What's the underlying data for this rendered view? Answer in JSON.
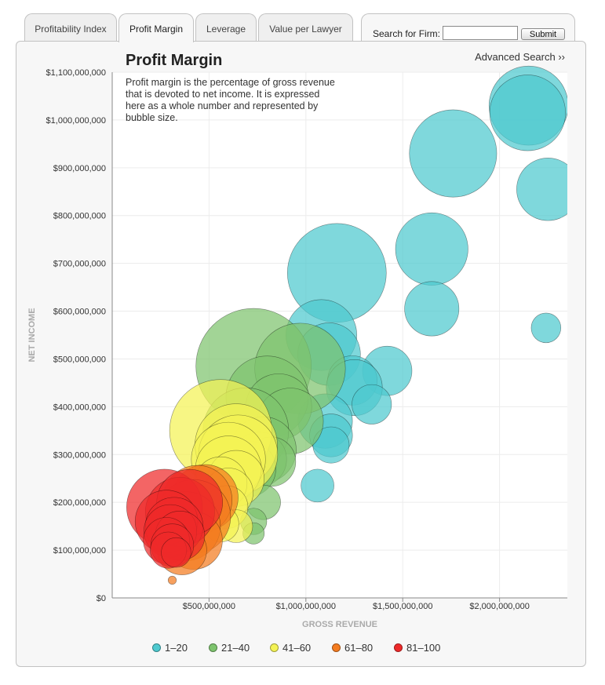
{
  "tabs": [
    {
      "label": "Profitability Index",
      "active": false
    },
    {
      "label": "Profit Margin",
      "active": true
    },
    {
      "label": "Leverage",
      "active": false
    },
    {
      "label": "Value per Lawyer",
      "active": false
    }
  ],
  "search": {
    "label": "Search for Firm:",
    "value": "",
    "submit_label": "Submit"
  },
  "advanced_search_label": "Advanced Search ››",
  "colors": {
    "1-20": "#4ec9cf",
    "21-40": "#7ec46e",
    "41-60": "#f4f355",
    "61-80": "#f47c20",
    "81-100": "#ee2a2a"
  },
  "chart_data": {
    "type": "scatter",
    "title": "Profit Margin",
    "subtitle": "Profit margin is the percentage of gross revenue that is devoted to net income. It is expressed here as a whole number and represented by bubble size.",
    "xlabel": "GROSS REVENUE",
    "ylabel": "NET INCOME",
    "xlim": [
      0,
      2350000000
    ],
    "ylim": [
      0,
      1100000000
    ],
    "x_ticks": [
      500000000,
      1000000000,
      1500000000,
      2000000000
    ],
    "x_tick_labels": [
      "$500,000,000",
      "$1,000,000,000",
      "$1,500,000,000",
      "$2,000,000,000"
    ],
    "y_ticks": [
      0,
      100000000,
      200000000,
      300000000,
      400000000,
      500000000,
      600000000,
      700000000,
      800000000,
      900000000,
      1000000000,
      1100000000
    ],
    "y_tick_labels": [
      "$0",
      "$100,000,000",
      "$200,000,000",
      "$300,000,000",
      "$400,000,000",
      "$500,000,000",
      "$600,000,000",
      "$700,000,000",
      "$800,000,000",
      "$900,000,000",
      "$1,000,000,000",
      "$1,100,000,000"
    ],
    "grid": true,
    "legend_position": "bottom",
    "size_encoding": "profit margin",
    "legend": [
      {
        "label": "1–20",
        "group": "1-20"
      },
      {
        "label": "21–40",
        "group": "21-40"
      },
      {
        "label": "41–60",
        "group": "41-60"
      },
      {
        "label": "61–80",
        "group": "61-80"
      },
      {
        "label": "81–100",
        "group": "81-100"
      }
    ],
    "points": [
      {
        "x": 2150000000,
        "y": 1030000000,
        "margin": 48,
        "group": "1-20"
      },
      {
        "x": 2145000000,
        "y": 1015000000,
        "margin": 46,
        "group": "1-20"
      },
      {
        "x": 1760000000,
        "y": 930000000,
        "margin": 53,
        "group": "1-20"
      },
      {
        "x": 2250000000,
        "y": 855000000,
        "margin": 38,
        "group": "1-20"
      },
      {
        "x": 1650000000,
        "y": 730000000,
        "margin": 44,
        "group": "1-20"
      },
      {
        "x": 1160000000,
        "y": 680000000,
        "margin": 60,
        "group": "1-20"
      },
      {
        "x": 1650000000,
        "y": 605000000,
        "margin": 33,
        "group": "1-20"
      },
      {
        "x": 2240000000,
        "y": 565000000,
        "margin": 18,
        "group": "1-20"
      },
      {
        "x": 1080000000,
        "y": 550000000,
        "margin": 43,
        "group": "1-20"
      },
      {
        "x": 1120000000,
        "y": 510000000,
        "margin": 38,
        "group": "1-20"
      },
      {
        "x": 1420000000,
        "y": 475000000,
        "margin": 30,
        "group": "1-20"
      },
      {
        "x": 1240000000,
        "y": 455000000,
        "margin": 30,
        "group": "1-20"
      },
      {
        "x": 1250000000,
        "y": 440000000,
        "margin": 34,
        "group": "1-20"
      },
      {
        "x": 1340000000,
        "y": 405000000,
        "margin": 24,
        "group": "1-20"
      },
      {
        "x": 1100000000,
        "y": 370000000,
        "margin": 33,
        "group": "1-20"
      },
      {
        "x": 1130000000,
        "y": 340000000,
        "margin": 26,
        "group": "1-20"
      },
      {
        "x": 1130000000,
        "y": 320000000,
        "margin": 22,
        "group": "1-20"
      },
      {
        "x": 1060000000,
        "y": 235000000,
        "margin": 20,
        "group": "1-20"
      },
      {
        "x": 730000000,
        "y": 485000000,
        "margin": 70,
        "group": "21-40"
      },
      {
        "x": 970000000,
        "y": 480000000,
        "margin": 55,
        "group": "21-40"
      },
      {
        "x": 800000000,
        "y": 420000000,
        "margin": 50,
        "group": "21-40"
      },
      {
        "x": 860000000,
        "y": 400000000,
        "margin": 40,
        "group": "21-40"
      },
      {
        "x": 920000000,
        "y": 370000000,
        "margin": 40,
        "group": "21-40"
      },
      {
        "x": 690000000,
        "y": 350000000,
        "margin": 52,
        "group": "21-40"
      },
      {
        "x": 780000000,
        "y": 310000000,
        "margin": 40,
        "group": "21-40"
      },
      {
        "x": 760000000,
        "y": 290000000,
        "margin": 33,
        "group": "21-40"
      },
      {
        "x": 820000000,
        "y": 285000000,
        "margin": 30,
        "group": "21-40"
      },
      {
        "x": 700000000,
        "y": 270000000,
        "margin": 34,
        "group": "21-40"
      },
      {
        "x": 780000000,
        "y": 200000000,
        "margin": 21,
        "group": "21-40"
      },
      {
        "x": 730000000,
        "y": 160000000,
        "margin": 16,
        "group": "21-40"
      },
      {
        "x": 730000000,
        "y": 135000000,
        "margin": 13,
        "group": "21-40"
      },
      {
        "x": 560000000,
        "y": 350000000,
        "margin": 62,
        "group": "41-60"
      },
      {
        "x": 640000000,
        "y": 320000000,
        "margin": 50,
        "group": "41-60"
      },
      {
        "x": 650000000,
        "y": 300000000,
        "margin": 48,
        "group": "41-60"
      },
      {
        "x": 600000000,
        "y": 290000000,
        "margin": 45,
        "group": "41-60"
      },
      {
        "x": 600000000,
        "y": 270000000,
        "margin": 40,
        "group": "41-60"
      },
      {
        "x": 640000000,
        "y": 250000000,
        "margin": 34,
        "group": "41-60"
      },
      {
        "x": 560000000,
        "y": 240000000,
        "margin": 32,
        "group": "41-60"
      },
      {
        "x": 600000000,
        "y": 220000000,
        "margin": 30,
        "group": "41-60"
      },
      {
        "x": 590000000,
        "y": 190000000,
        "margin": 26,
        "group": "41-60"
      },
      {
        "x": 640000000,
        "y": 150000000,
        "margin": 20,
        "group": "41-60"
      },
      {
        "x": 560000000,
        "y": 155000000,
        "margin": 22,
        "group": "41-60"
      },
      {
        "x": 480000000,
        "y": 210000000,
        "margin": 40,
        "group": "61-80"
      },
      {
        "x": 440000000,
        "y": 205000000,
        "margin": 42,
        "group": "61-80"
      },
      {
        "x": 420000000,
        "y": 170000000,
        "margin": 45,
        "group": "61-80"
      },
      {
        "x": 380000000,
        "y": 150000000,
        "margin": 42,
        "group": "61-80"
      },
      {
        "x": 420000000,
        "y": 120000000,
        "margin": 35,
        "group": "61-80"
      },
      {
        "x": 360000000,
        "y": 100000000,
        "margin": 30,
        "group": "61-80"
      },
      {
        "x": 310000000,
        "y": 37000000,
        "margin": 5,
        "group": "61-80"
      },
      {
        "x": 270000000,
        "y": 190000000,
        "margin": 46,
        "group": "81-100"
      },
      {
        "x": 350000000,
        "y": 180000000,
        "margin": 42,
        "group": "81-100"
      },
      {
        "x": 400000000,
        "y": 200000000,
        "margin": 40,
        "group": "81-100"
      },
      {
        "x": 280000000,
        "y": 160000000,
        "margin": 38,
        "group": "81-100"
      },
      {
        "x": 320000000,
        "y": 150000000,
        "margin": 35,
        "group": "81-100"
      },
      {
        "x": 300000000,
        "y": 140000000,
        "margin": 32,
        "group": "81-100"
      },
      {
        "x": 350000000,
        "y": 130000000,
        "margin": 30,
        "group": "81-100"
      },
      {
        "x": 280000000,
        "y": 120000000,
        "margin": 28,
        "group": "81-100"
      },
      {
        "x": 310000000,
        "y": 110000000,
        "margin": 26,
        "group": "81-100"
      },
      {
        "x": 290000000,
        "y": 100000000,
        "margin": 22,
        "group": "81-100"
      },
      {
        "x": 330000000,
        "y": 95000000,
        "margin": 18,
        "group": "81-100"
      }
    ]
  }
}
